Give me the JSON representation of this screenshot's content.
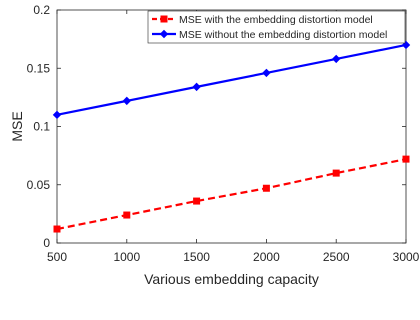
{
  "chart_data": {
    "type": "line",
    "title": "",
    "xlabel": "Various embedding capacity",
    "ylabel": "MSE",
    "xlim": [
      500,
      3000
    ],
    "ylim": [
      0,
      0.2
    ],
    "xticks": [
      500,
      1000,
      1500,
      2000,
      2500,
      3000
    ],
    "yticks": [
      0,
      0.05,
      0.1,
      0.15,
      0.2
    ],
    "xtick_labels": [
      "500",
      "1000",
      "1500",
      "2000",
      "2500",
      "3000"
    ],
    "ytick_labels": [
      "0",
      "0.05",
      "0.1",
      "0.15",
      "0.2"
    ],
    "grid": false,
    "legend_position": "top-right",
    "x": [
      500,
      1000,
      1500,
      2000,
      2500,
      3000
    ],
    "series": [
      {
        "name": "MSE with the embedding distortion model",
        "values": [
          0.012,
          0.024,
          0.036,
          0.047,
          0.06,
          0.072
        ],
        "color": "#ff0000",
        "line_style": "dashed",
        "marker": "square"
      },
      {
        "name": "MSE without the embedding distortion model",
        "values": [
          0.11,
          0.122,
          0.134,
          0.146,
          0.158,
          0.17
        ],
        "color": "#0000ff",
        "line_style": "solid",
        "marker": "diamond"
      }
    ]
  }
}
